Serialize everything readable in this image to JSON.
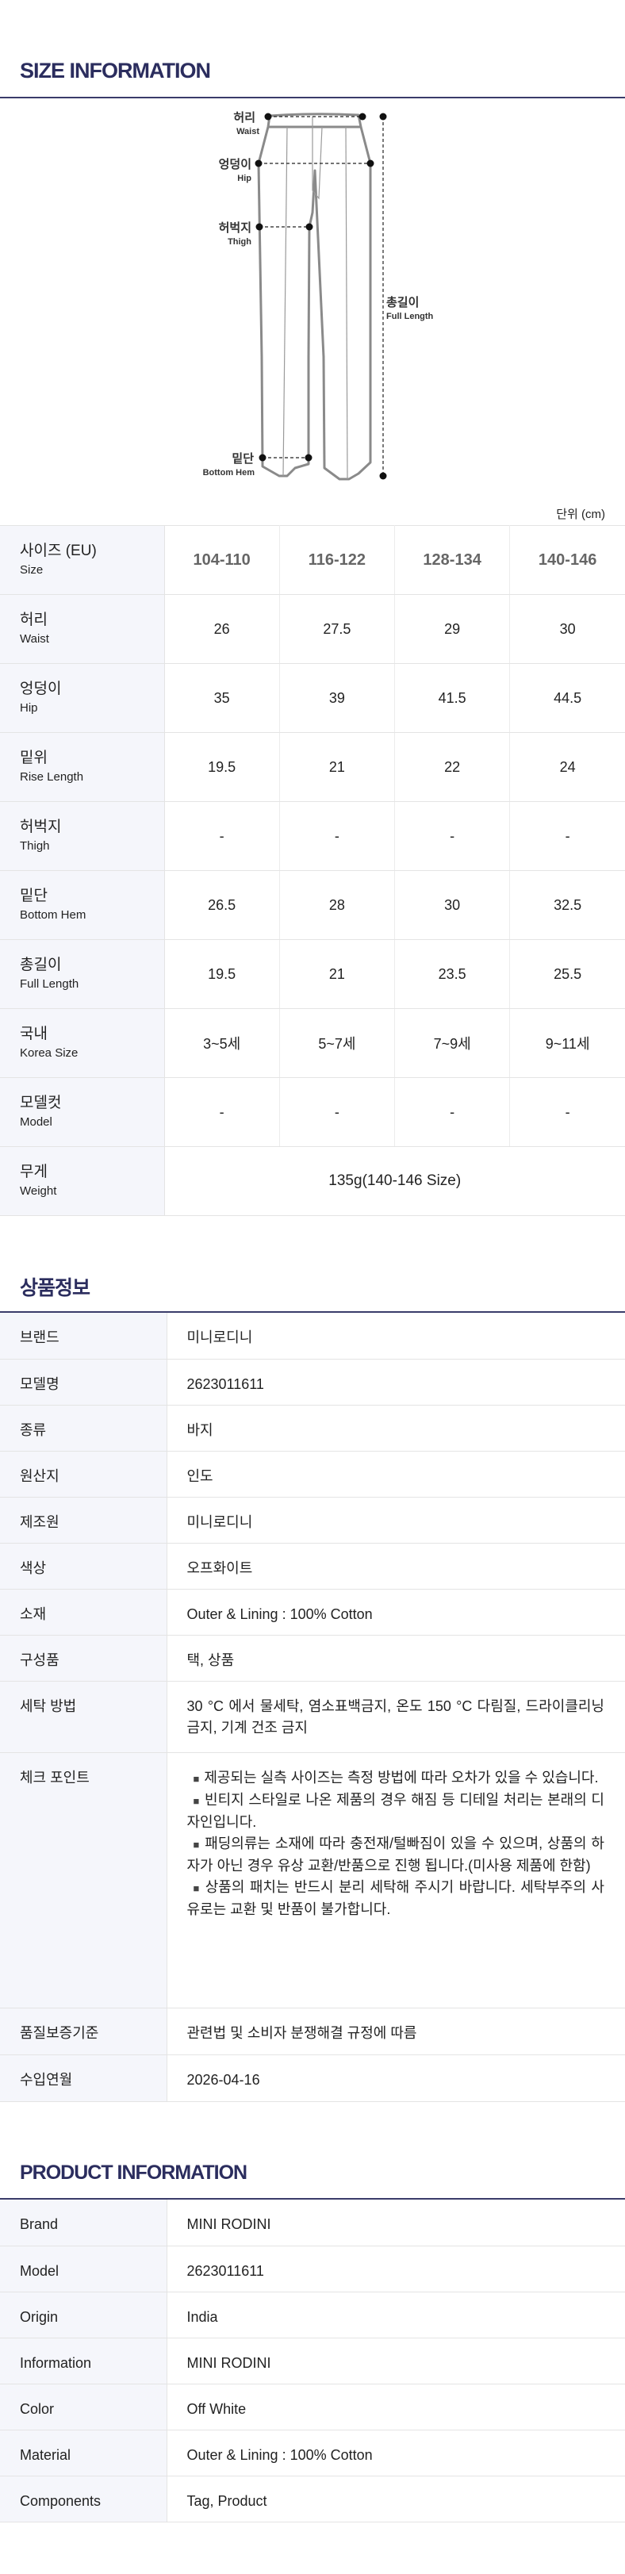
{
  "size_section": {
    "title": "SIZE INFORMATION",
    "unit": "단위 (cm)",
    "diagram": {
      "waist_ko": "허리",
      "waist_en": "Waist",
      "hip_ko": "엉덩이",
      "hip_en": "Hip",
      "thigh_ko": "허벅지",
      "thigh_en": "Thigh",
      "hem_ko": "밑단",
      "hem_en": "Bottom Hem",
      "length_ko": "총길이",
      "length_en": "Full Length"
    },
    "header": {
      "ko": "사이즈 (EU)",
      "en": "Size",
      "sizes": [
        "104-110",
        "116-122",
        "128-134",
        "140-146"
      ]
    },
    "rows": [
      {
        "ko": "허리",
        "en": "Waist",
        "values": [
          "26",
          "27.5",
          "29",
          "30"
        ]
      },
      {
        "ko": "엉덩이",
        "en": "Hip",
        "values": [
          "35",
          "39",
          "41.5",
          "44.5"
        ]
      },
      {
        "ko": "밑위",
        "en": "Rise Length",
        "values": [
          "19.5",
          "21",
          "22",
          "24"
        ]
      },
      {
        "ko": "허벅지",
        "en": "Thigh",
        "values": [
          "-",
          "-",
          "-",
          "-"
        ]
      },
      {
        "ko": "밑단",
        "en": "Bottom Hem",
        "values": [
          "26.5",
          "28",
          "30",
          "32.5"
        ]
      },
      {
        "ko": "총길이",
        "en": "Full Length",
        "values": [
          "19.5",
          "21",
          "23.5",
          "25.5"
        ]
      },
      {
        "ko": "국내",
        "en": "Korea Size",
        "values": [
          "3~5세",
          "5~7세",
          "7~9세",
          "9~11세"
        ]
      },
      {
        "ko": "모델컷",
        "en": "Model",
        "values": [
          "-",
          "-",
          "-",
          "-"
        ]
      }
    ],
    "weight": {
      "ko": "무게",
      "en": "Weight",
      "value": "135g(140-146 Size)"
    }
  },
  "ko_section": {
    "title": "상품정보",
    "rows": [
      {
        "label": "브랜드",
        "value": "미니로디니"
      },
      {
        "label": "모델명",
        "value": "2623011611"
      },
      {
        "label": "종류",
        "value": "바지"
      },
      {
        "label": "원산지",
        "value": "인도"
      },
      {
        "label": "제조원",
        "value": "미니로디니"
      },
      {
        "label": "색상",
        "value": "오프화이트"
      },
      {
        "label": "소재",
        "value": "Outer & Lining : 100% Cotton"
      },
      {
        "label": "구성품",
        "value": "택, 상품"
      },
      {
        "label": "세탁 방법",
        "value": "30 °C 에서 물세탁, 염소표백금지, 온도 150 °C 다림질, 드라이클리닝 금지, 기계 건조 금지"
      }
    ],
    "checkpoint": {
      "label": "체크 포인트",
      "bullet_icon": "square-bullet",
      "items": [
        "제공되는 실측 사이즈는 측정 방법에 따라 오차가 있을 수 있습니다.",
        "빈티지 스타일로 나온 제품의 경우 해짐 등 디테일 처리는 본래의 디자인입니다.",
        "패딩의류는 소재에 따라 충전재/털빠짐이 있을 수 있으며, 상품의 하자가 아닌 경우 유상 교환/반품으로 진행 됩니다.(미사용 제품에 한함)",
        "상품의 패치는 반드시 분리 세탁해 주시기 바랍니다. 세탁부주의 사유로는 교환 및 반품이 불가합니다."
      ]
    },
    "rows2": [
      {
        "label": "품질보증기준",
        "value": "관련법 및 소비자 분쟁해결 규정에 따름"
      },
      {
        "label": "수입연월",
        "value": "2026-04-16"
      }
    ]
  },
  "en_section": {
    "title": "PRODUCT INFORMATION",
    "rows": [
      {
        "label": "Brand",
        "value": "MINI RODINI"
      },
      {
        "label": "Model",
        "value": "2623011611"
      },
      {
        "label": "Origin",
        "value": "India"
      },
      {
        "label": "Information",
        "value": "MINI RODINI"
      },
      {
        "label": "Color",
        "value": "Off White"
      },
      {
        "label": "Material",
        "value": "Outer & Lining : 100% Cotton"
      },
      {
        "label": "Components",
        "value": "Tag, Product"
      }
    ]
  },
  "colors": {
    "accent": "#2b2d5e",
    "label_bg": "#f5f6fb",
    "outline": "#8a8a8a"
  }
}
